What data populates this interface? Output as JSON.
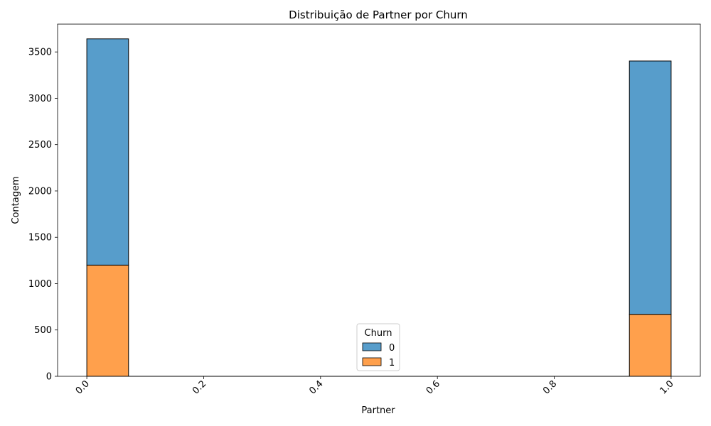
{
  "chart_data": {
    "type": "bar",
    "title": "Distribuição de Partner por Churn",
    "xlabel": "Partner",
    "ylabel": "Contagem",
    "xlim": [
      -0.05,
      1.05
    ],
    "ylim": [
      0,
      3800
    ],
    "x_ticks": [
      "0.0",
      "0.2",
      "0.4",
      "0.6",
      "0.8",
      "1.0"
    ],
    "y_ticks": [
      "0",
      "500",
      "1000",
      "1500",
      "2000",
      "2500",
      "3000",
      "3500"
    ],
    "bins": [
      [
        0.0,
        0.0714
      ],
      [
        0.9286,
        1.0
      ]
    ],
    "stacked": true,
    "series": [
      {
        "name": "1",
        "color": "#ffa04c",
        "values": [
          1200,
          669
        ]
      },
      {
        "name": "0",
        "color": "#579dcb",
        "values": [
          2441,
          2733
        ]
      }
    ],
    "legend": {
      "title": "Churn",
      "placement": "bottom-center",
      "entries": [
        {
          "label": "0",
          "color": "#579dcb"
        },
        {
          "label": "1",
          "color": "#ffa04c"
        }
      ]
    }
  }
}
